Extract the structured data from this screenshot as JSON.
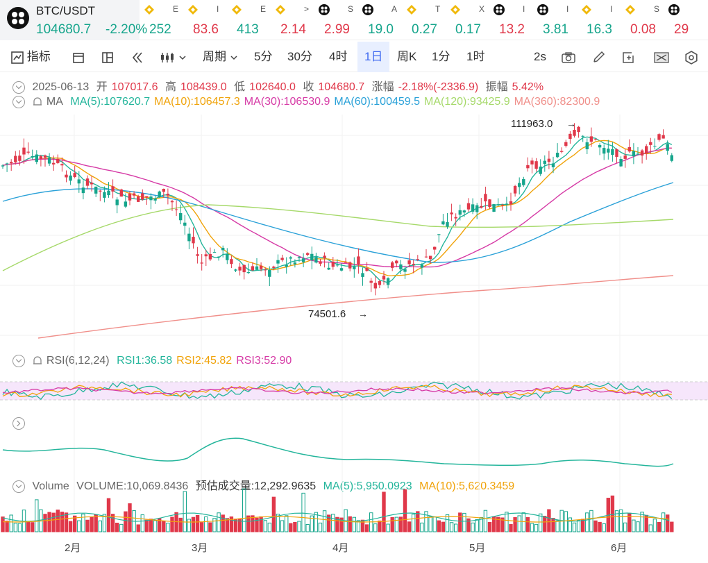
{
  "ticker": {
    "symbol": "BTC/USDT",
    "price": "104680.7",
    "change": "-2.20%",
    "others": [
      {
        "icon": "bnb-icon",
        "name": "E",
        "value": "252",
        "dir": "up"
      },
      {
        "icon": "bnb-icon",
        "name": "I",
        "value": "83.6",
        "dir": "down"
      },
      {
        "icon": "bnb-icon",
        "name": "E",
        "value": "413",
        "dir": "up"
      },
      {
        "icon": "bnb-icon",
        "name": ">",
        "value": "2.14",
        "dir": "down"
      },
      {
        "icon": "dark-coin-icon",
        "name": "S",
        "value": "2.99",
        "dir": "down"
      },
      {
        "icon": "dark-coin-icon",
        "name": "A",
        "value": "19.0",
        "dir": "up"
      },
      {
        "icon": "bnb-icon",
        "name": "T",
        "value": "0.27",
        "dir": "up"
      },
      {
        "icon": "bnb-icon",
        "name": "X",
        "value": "0.17",
        "dir": "up"
      },
      {
        "icon": "dark-coin-icon",
        "name": "I",
        "value": "13.2",
        "dir": "down"
      },
      {
        "icon": "dark-coin-icon",
        "name": "I",
        "value": "3.81",
        "dir": "up"
      },
      {
        "icon": "bnb-icon",
        "name": "I",
        "value": "16.3",
        "dir": "up"
      },
      {
        "icon": "bnb-icon",
        "name": "S",
        "value": "0.08",
        "dir": "down"
      },
      {
        "icon": "dark-coin-icon",
        "name": "",
        "value": "29",
        "dir": "down"
      }
    ]
  },
  "toolbar": {
    "indicators": "指标",
    "period": "周期",
    "intervals": [
      "5分",
      "30分",
      "4时",
      "1日",
      "周K",
      "1分",
      "1时"
    ],
    "active_interval": "1日",
    "refresh": "2s"
  },
  "ohlc": {
    "date": "2025-06-13",
    "open_label": "开",
    "open": "107017.6",
    "high_label": "高",
    "high": "108439.0",
    "low_label": "低",
    "low": "102640.0",
    "close_label": "收",
    "close": "104680.7",
    "change_label": "涨幅",
    "change": "-2.18%(-2336.9)",
    "amp_label": "振幅",
    "amp": "5.42%"
  },
  "ma_legend": {
    "name": "MA",
    "items": [
      {
        "label": "MA(5):107620.7",
        "color": "#23b59b"
      },
      {
        "label": "MA(10):106457.3",
        "color": "#f0a30a"
      },
      {
        "label": "MA(30):106530.9",
        "color": "#d63ba6"
      },
      {
        "label": "MA(60):100459.5",
        "color": "#2aa1d8"
      },
      {
        "label": "MA(120):93425.9",
        "color": "#a6d96a"
      },
      {
        "label": "MA(360):82300.9",
        "color": "#f08f8a"
      }
    ]
  },
  "annotations": {
    "high": "111963.0",
    "low": "74501.6"
  },
  "rsi_legend": {
    "name": "RSI(6,12,24)",
    "items": [
      {
        "label": "RSI1:36.58",
        "color": "#23b59b"
      },
      {
        "label": "RSI2:45.82",
        "color": "#f0a30a"
      },
      {
        "label": "RSI3:52.90",
        "color": "#d63ba6"
      }
    ]
  },
  "volume_legend": {
    "name": "Volume",
    "volume": "VOLUME:10,069.8436",
    "estimate": "预估成交量:12,292.9635",
    "ma5": "MA(5):5,950.0923",
    "ma10": "MA(10):5,620.3459"
  },
  "x_axis": [
    "2月",
    "3月",
    "4月",
    "5月",
    "6月"
  ],
  "colors": {
    "up": "#16a58c",
    "down": "#e0384a",
    "accent": "#3d68f0"
  }
}
